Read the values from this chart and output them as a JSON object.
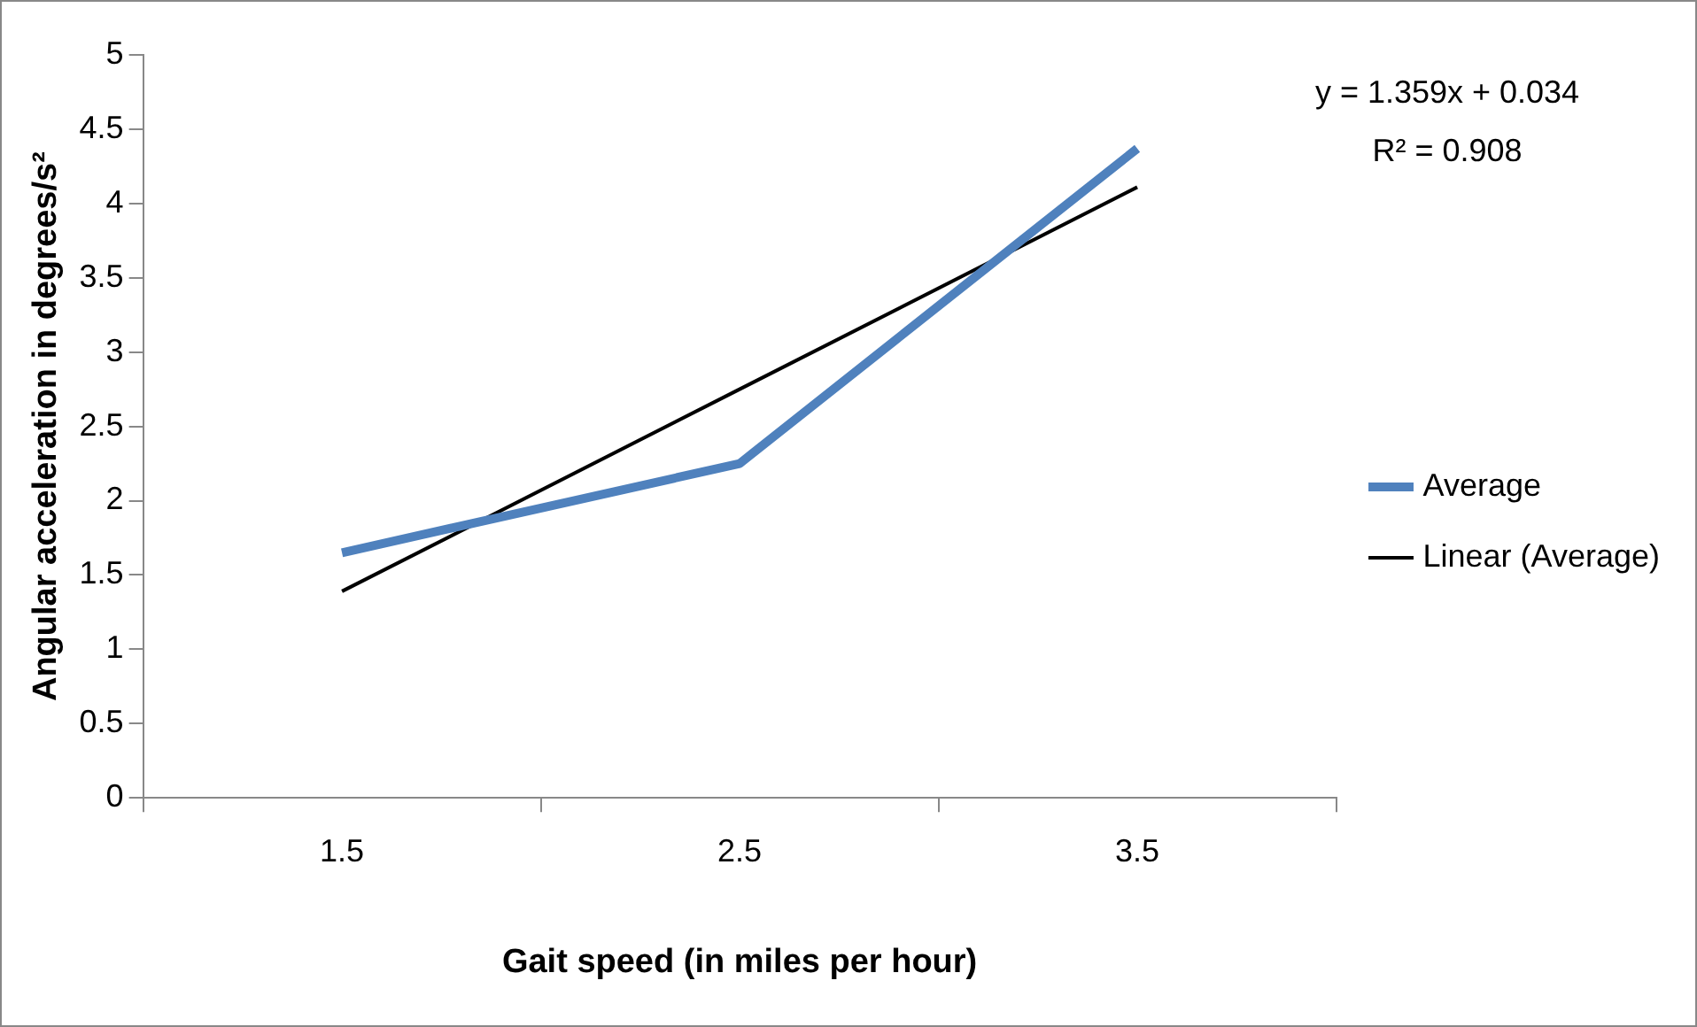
{
  "chart_data": {
    "type": "line",
    "xlabel": "Gait speed (in miles per hour)",
    "ylabel": "Angular acceleration in degrees/s²",
    "categories": [
      "1.5",
      "2.5",
      "3.5"
    ],
    "series": [
      {
        "name": "Average",
        "color": "#4f81bd",
        "values": [
          1.65,
          2.25,
          4.37
        ]
      },
      {
        "name": "Linear (Average)",
        "color": "#000000",
        "values": [
          1.39,
          2.75,
          4.11
        ]
      }
    ],
    "ylim": [
      0,
      5
    ],
    "yticks": [
      0,
      0.5,
      1,
      1.5,
      2,
      2.5,
      3,
      3.5,
      4,
      4.5,
      5
    ],
    "grid": false,
    "legend": "right",
    "marker": "none",
    "annotations": [
      "y = 1.359x + 0.034",
      "R² = 0.908"
    ]
  }
}
